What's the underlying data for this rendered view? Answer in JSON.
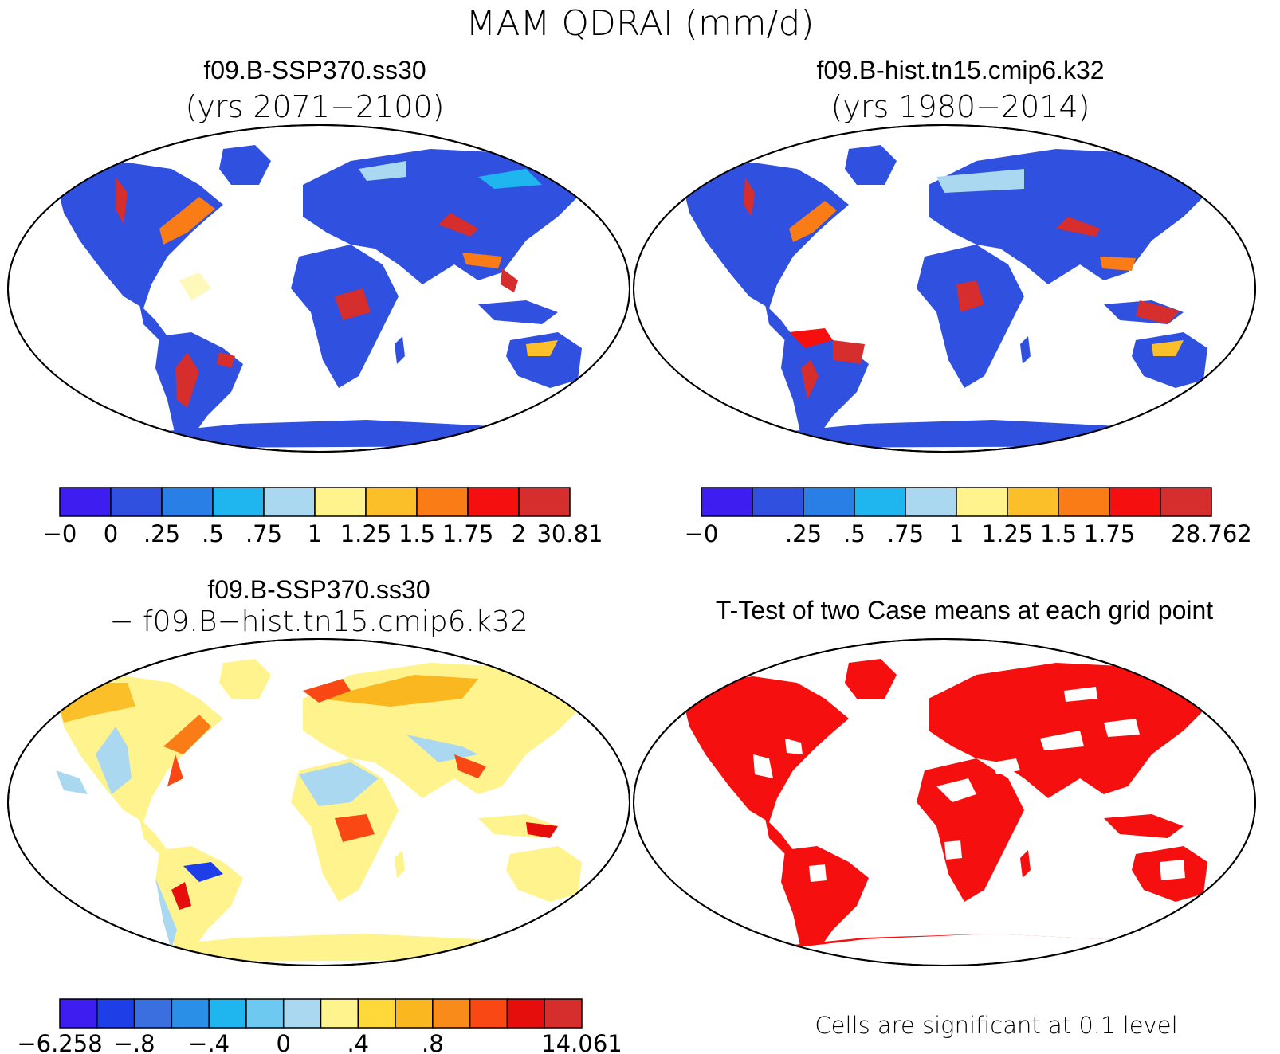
{
  "figure": {
    "title": "MAM QDRAI (mm/d)"
  },
  "panels": [
    {
      "id": "tl",
      "title_line1": "f09.B-SSP370.ss30",
      "title_line2": "(yrs 2071−2100)",
      "colorbar": {
        "colors": [
          "#3d1df0",
          "#3050e0",
          "#2a7fe6",
          "#1fb5ef",
          "#a9d8f0",
          "#fff38e",
          "#fbbf2a",
          "#f97c17",
          "#f50f0f",
          "#d62d2d"
        ],
        "labels": [
          "−0",
          "0",
          ".25",
          ".5",
          ".75",
          "1",
          "1.25",
          "1.5",
          "1.75",
          "2",
          "30.81"
        ]
      }
    },
    {
      "id": "tr",
      "title_line1": "f09.B-hist.tn15.cmip6.k32",
      "title_line2": "(yrs 1980−2014)",
      "colorbar": {
        "colors": [
          "#3d1df0",
          "#3050e0",
          "#2a7fe6",
          "#1fb5ef",
          "#a9d8f0",
          "#fff38e",
          "#fbbf2a",
          "#f97c17",
          "#f50f0f",
          "#d62d2d"
        ],
        "labels": [
          "−0",
          "",
          ".25",
          ".5",
          ".75",
          "1",
          "1.25",
          "1.5",
          "1.75",
          "",
          "28.762"
        ]
      }
    },
    {
      "id": "bl",
      "title_line1": "f09.B-SSP370.ss30",
      "title_line2": "− f09.B−hist.tn15.cmip6.k32",
      "colorbar": {
        "colors": [
          "#3d1df0",
          "#1e3fe8",
          "#3b6fe0",
          "#2a8fe6",
          "#1fb5ef",
          "#6dc9ef",
          "#a9d8f0",
          "#fff38e",
          "#ffd93a",
          "#fbb71f",
          "#f98b1a",
          "#f94814",
          "#e60d0d",
          "#d62d2d"
        ],
        "labels": [
          "−6.258",
          "",
          "−.8",
          "",
          "−.4",
          "",
          "0",
          "",
          ".4",
          "",
          ".8",
          "",
          "",
          "",
          "14.061"
        ]
      }
    },
    {
      "id": "br",
      "title_line1": "T-Test of two Case means at each grid point",
      "note": "Cells are significant at 0.1 level"
    }
  ]
}
